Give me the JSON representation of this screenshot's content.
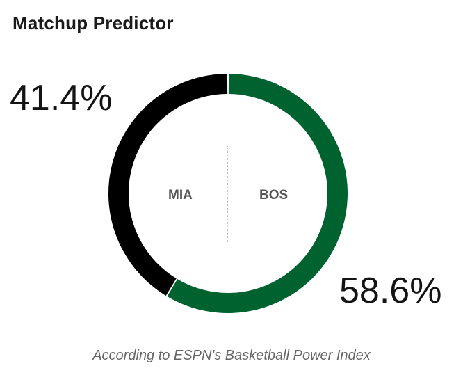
{
  "header": {
    "title": "Matchup Predictor"
  },
  "away": {
    "abbr": "MIA",
    "pct_label": "41.4%",
    "win_probability": 41.4,
    "color": "#000000"
  },
  "home": {
    "abbr": "BOS",
    "pct_label": "58.6%",
    "win_probability": 58.6,
    "color": "#00632f"
  },
  "footer": {
    "note": "According to ESPN's Basketball Power Index"
  },
  "chart_data": {
    "type": "pie",
    "categories": [
      "MIA",
      "BOS"
    ],
    "values": [
      41.4,
      58.6
    ],
    "colors": [
      "#000000",
      "#00632f"
    ],
    "style": "donut"
  }
}
